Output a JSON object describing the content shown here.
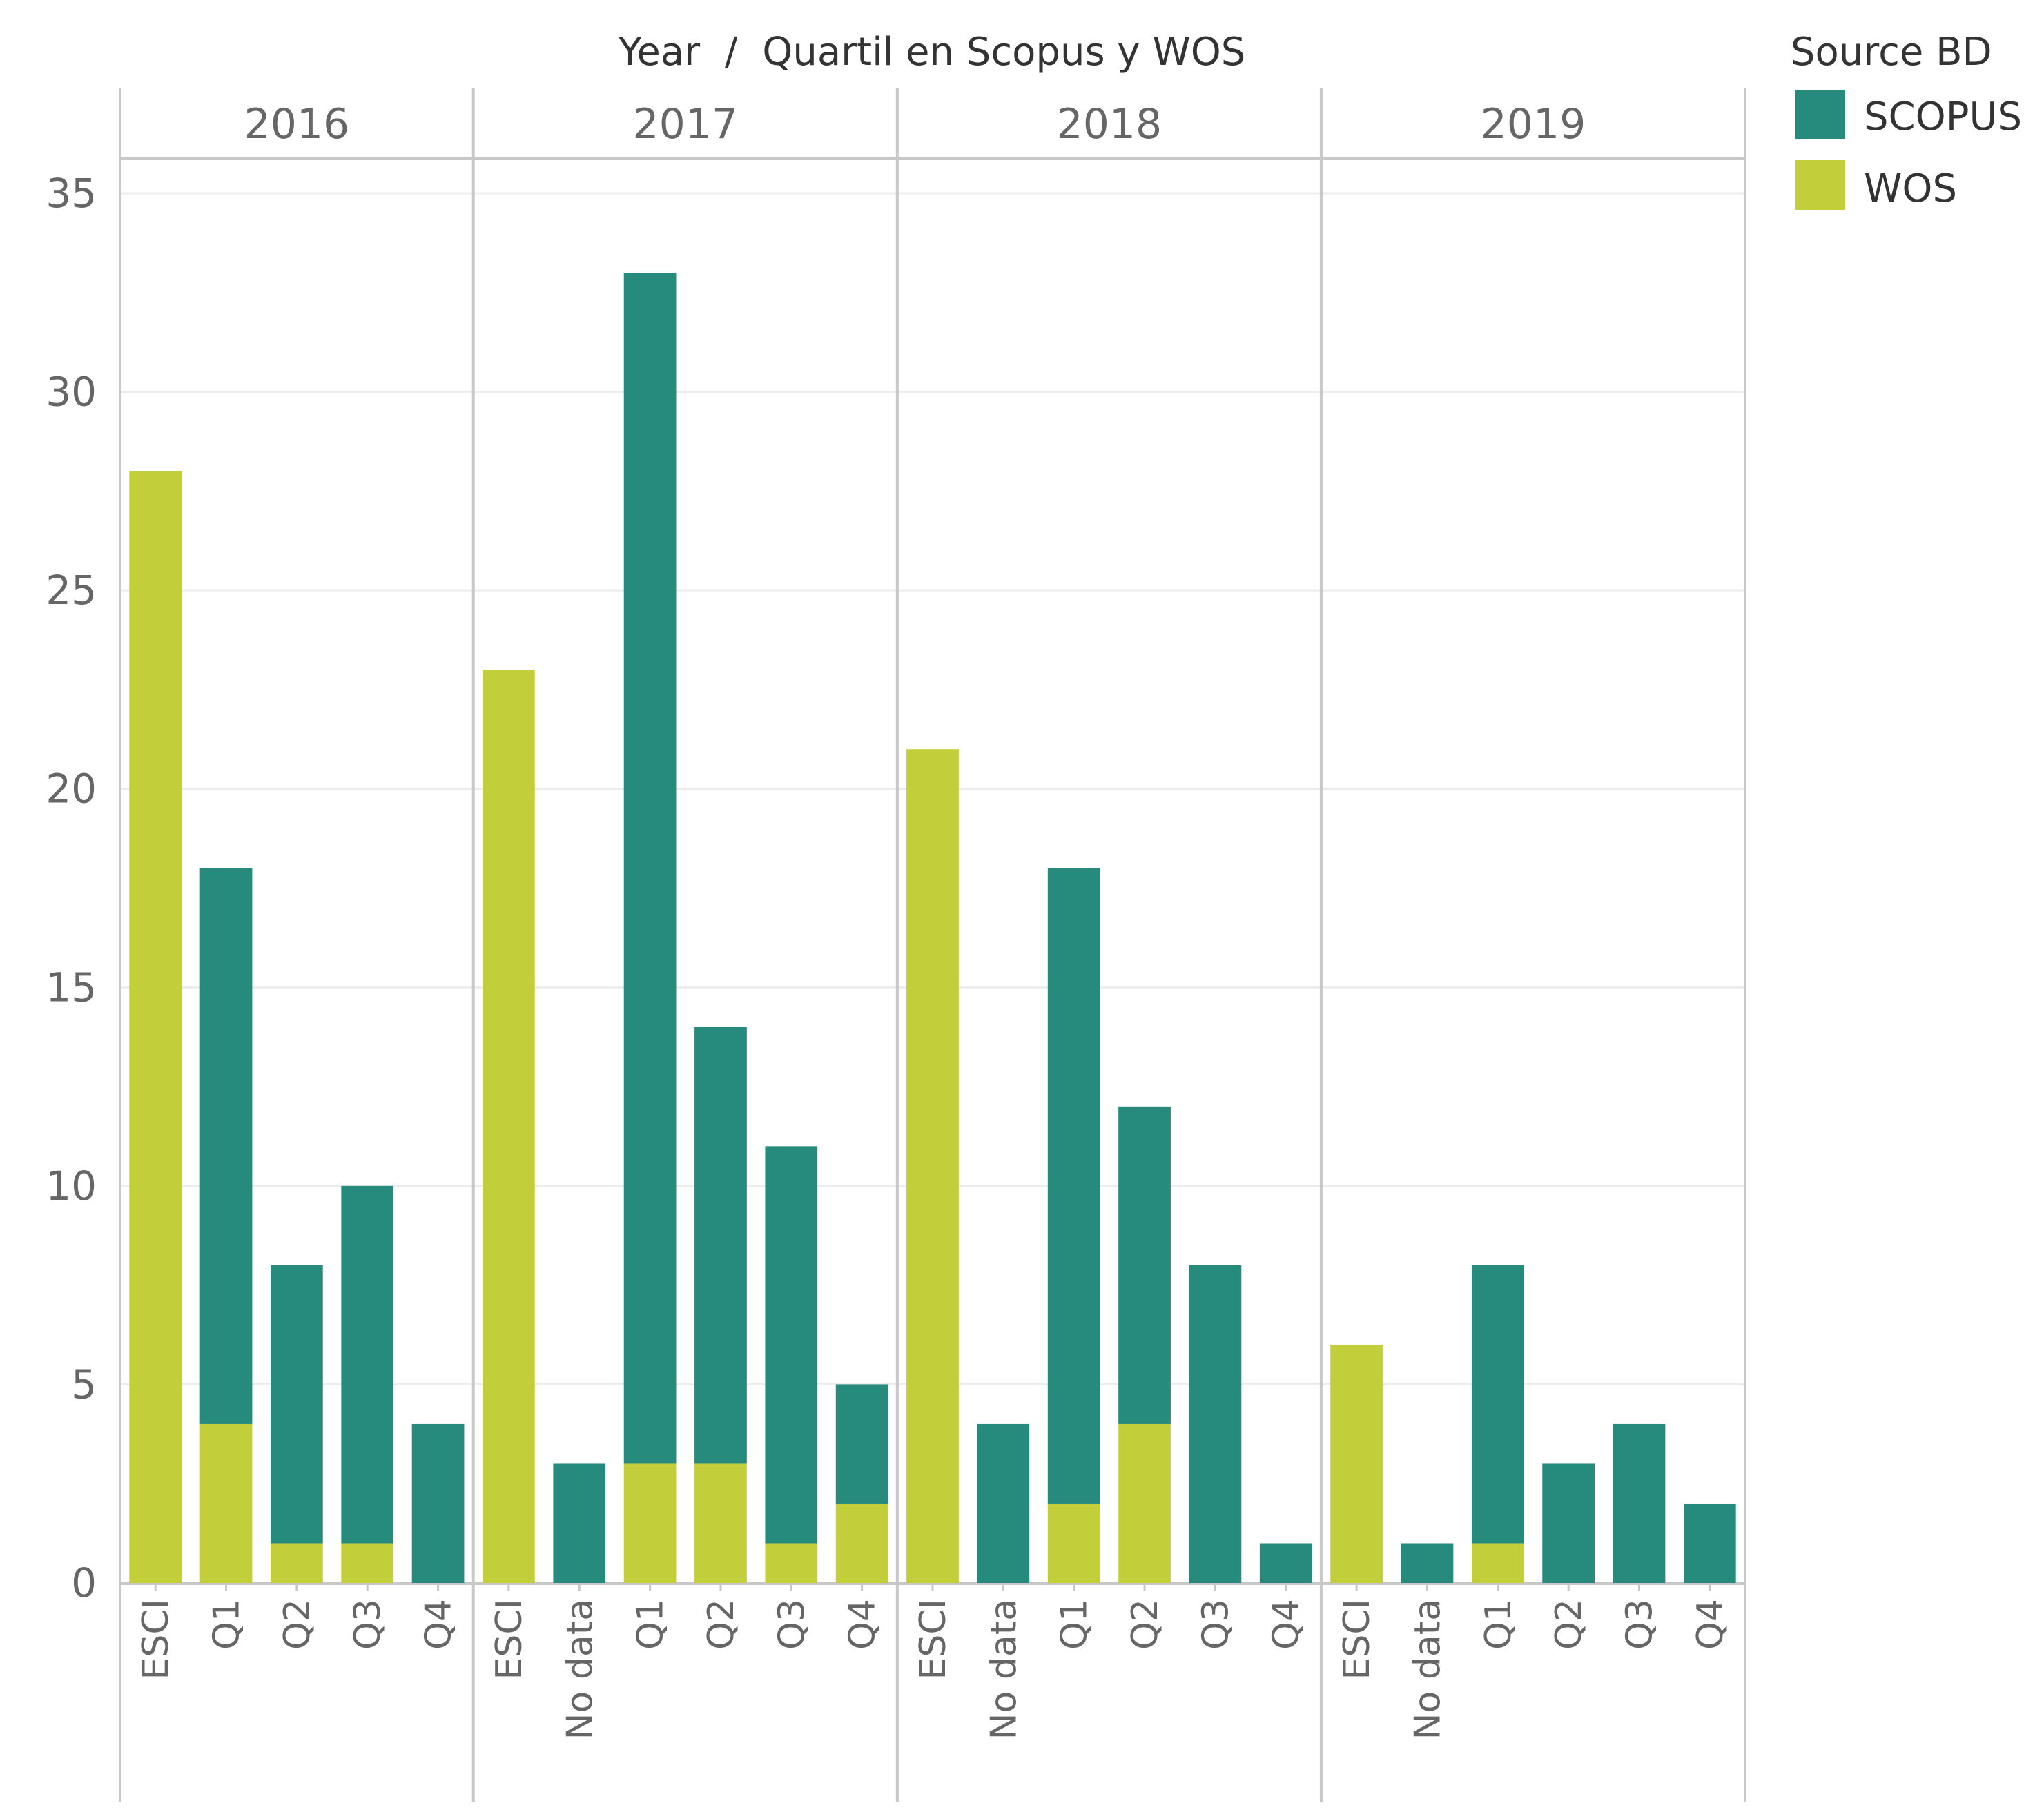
{
  "chart_data": {
    "type": "bar",
    "stacked": true,
    "title": "Year  /  Quartil en Scopus y WOS",
    "ylabel": "",
    "ylim": [
      0,
      35
    ],
    "yticks": [
      0,
      5,
      10,
      15,
      20,
      25,
      30,
      35
    ],
    "grid": true,
    "legend": {
      "title": "Source BD",
      "position": "top-right",
      "items": [
        {
          "name": "SCOPUS",
          "color": "#268a7c"
        },
        {
          "name": "WOS",
          "color": "#c3cf3a"
        }
      ]
    },
    "panels": [
      {
        "year": "2016",
        "categories": [
          "ESCI",
          "Q1",
          "Q2",
          "Q3",
          "Q4"
        ],
        "series": [
          {
            "name": "WOS",
            "values": [
              28,
              4,
              1,
              1,
              0
            ]
          },
          {
            "name": "SCOPUS",
            "values": [
              0,
              14,
              7,
              9,
              4
            ]
          }
        ]
      },
      {
        "year": "2017",
        "categories": [
          "ESCI",
          "No data",
          "Q1",
          "Q2",
          "Q3",
          "Q4"
        ],
        "series": [
          {
            "name": "WOS",
            "values": [
              23,
              0,
              3,
              3,
              1,
              2
            ]
          },
          {
            "name": "SCOPUS",
            "values": [
              0,
              3,
              30,
              11,
              10,
              3
            ]
          }
        ]
      },
      {
        "year": "2018",
        "categories": [
          "ESCI",
          "No data",
          "Q1",
          "Q2",
          "Q3",
          "Q4"
        ],
        "series": [
          {
            "name": "WOS",
            "values": [
              21,
              0,
              2,
              4,
              0,
              0
            ]
          },
          {
            "name": "SCOPUS",
            "values": [
              0,
              4,
              16,
              8,
              8,
              1
            ]
          }
        ]
      },
      {
        "year": "2019",
        "categories": [
          "ESCI",
          "No data",
          "Q1",
          "Q2",
          "Q3",
          "Q4"
        ],
        "series": [
          {
            "name": "WOS",
            "values": [
              6,
              0,
              1,
              0,
              0,
              0
            ]
          },
          {
            "name": "SCOPUS",
            "values": [
              0,
              1,
              7,
              3,
              4,
              2
            ]
          }
        ]
      }
    ]
  }
}
